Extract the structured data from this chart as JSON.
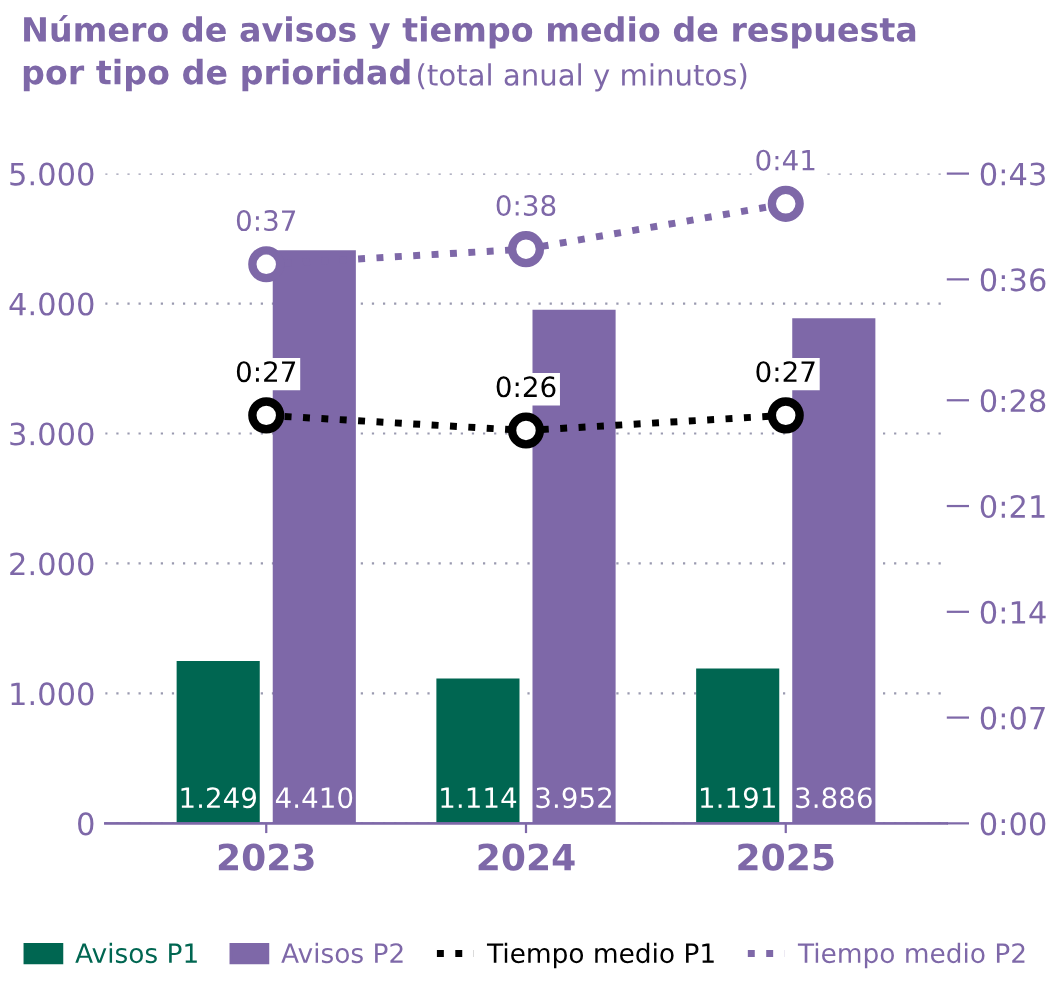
{
  "chart_data": {
    "type": "bar",
    "title": "Número de avisos y tiempo medio de respuesta\npor tipo de prioridad",
    "subtitle": "(total anual y minutos)",
    "categories": [
      "2023",
      "2024",
      "2025"
    ],
    "series": [
      {
        "name": "Avisos P1",
        "color": "#006651",
        "values": [
          1249,
          1114,
          1191
        ],
        "value_labels": [
          "1.249",
          "1.114",
          "1.191"
        ]
      },
      {
        "name": "Avisos P2",
        "color": "#7e68a8",
        "values": [
          4410,
          3952,
          3886
        ],
        "value_labels": [
          "4.410",
          "3.952",
          "3.886"
        ]
      },
      {
        "name": "Tiempo medio P1",
        "type": "line",
        "axis": "y2",
        "color": "#000000",
        "values": [
          27,
          26,
          27
        ],
        "value_labels": [
          "0:27",
          "0:26",
          "0:27"
        ]
      },
      {
        "name": "Tiempo medio P2",
        "type": "line",
        "axis": "y2",
        "color": "#7e68a8",
        "values": [
          37,
          38,
          41
        ],
        "value_labels": [
          "0:37",
          "0:38",
          "0:41"
        ]
      }
    ],
    "ylim": [
      0,
      5000
    ],
    "yticks": [
      {
        "value": 0,
        "label": "0"
      },
      {
        "value": 1000,
        "label": "1.000"
      },
      {
        "value": 2000,
        "label": "2.000"
      },
      {
        "value": 3000,
        "label": "3.000"
      },
      {
        "value": 4000,
        "label": "4.000"
      },
      {
        "value": 5000,
        "label": "5.000"
      }
    ],
    "y2lim": [
      0,
      43
    ],
    "y2ticks": [
      {
        "value": 0,
        "label": "0:00"
      },
      {
        "value": 7,
        "label": "0:07"
      },
      {
        "value": 14,
        "label": "0:14"
      },
      {
        "value": 21,
        "label": "0:21"
      },
      {
        "value": 28,
        "label": "0:28"
      },
      {
        "value": 36,
        "label": "0:36"
      },
      {
        "value": 43,
        "label": "0:43"
      }
    ],
    "grid": "y",
    "legend": "bottom",
    "marker": "circle",
    "line_style": "dotted"
  }
}
